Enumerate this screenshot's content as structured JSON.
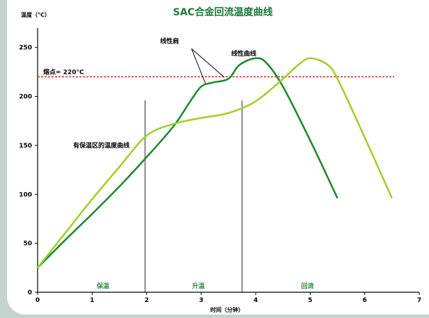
{
  "chart_data": {
    "type": "line",
    "title": "SAC合金回流温度曲线",
    "ylabel": "温度（°C）",
    "xlabel": "时间（分钟）",
    "xlim": [
      0,
      7
    ],
    "ylim": [
      0,
      270
    ],
    "xticks": [
      "0",
      "1",
      "2",
      "3",
      "4",
      "5",
      "6",
      "7"
    ],
    "yticks": [
      "0",
      "50",
      "100",
      "150",
      "200",
      "250"
    ],
    "series": [
      {
        "label": "线性曲线",
        "color": "#1f8a2e",
        "x": [
          0,
          0.5,
          1,
          1.5,
          2,
          2.5,
          2.8,
          3.0,
          3.2,
          3.5,
          3.7,
          4.0,
          4.2,
          4.5,
          5.0,
          5.5
        ],
        "y": [
          25,
          53,
          80,
          108,
          138,
          170,
          195,
          210,
          214,
          218,
          232,
          239,
          234,
          210,
          155,
          96
        ]
      },
      {
        "label": "有保温区的温度曲线",
        "color": "#9fd12a",
        "x": [
          0,
          0.5,
          1,
          1.5,
          2,
          2.5,
          3,
          3.5,
          4,
          4.5,
          4.8,
          5.0,
          5.3,
          5.5,
          6,
          6.5
        ],
        "y": [
          25,
          60,
          95,
          128,
          160,
          172,
          178,
          183,
          195,
          218,
          233,
          239,
          233,
          218,
          158,
          96
        ]
      }
    ],
    "reference_line": {
      "y": 220,
      "label": "熔点= 220°C",
      "color": "#e02020"
    },
    "phase_dividers": [
      1.97,
      3.75
    ],
    "phases": [
      {
        "label": "保温",
        "x": 1.2
      },
      {
        "label": "升温",
        "x": 2.95
      },
      {
        "label": "回流",
        "x": 4.95
      }
    ],
    "annotations": {
      "shoulder": "线性肩",
      "linear_curve": "线性曲线",
      "soak_curve": "有保温区的温度曲线"
    }
  }
}
